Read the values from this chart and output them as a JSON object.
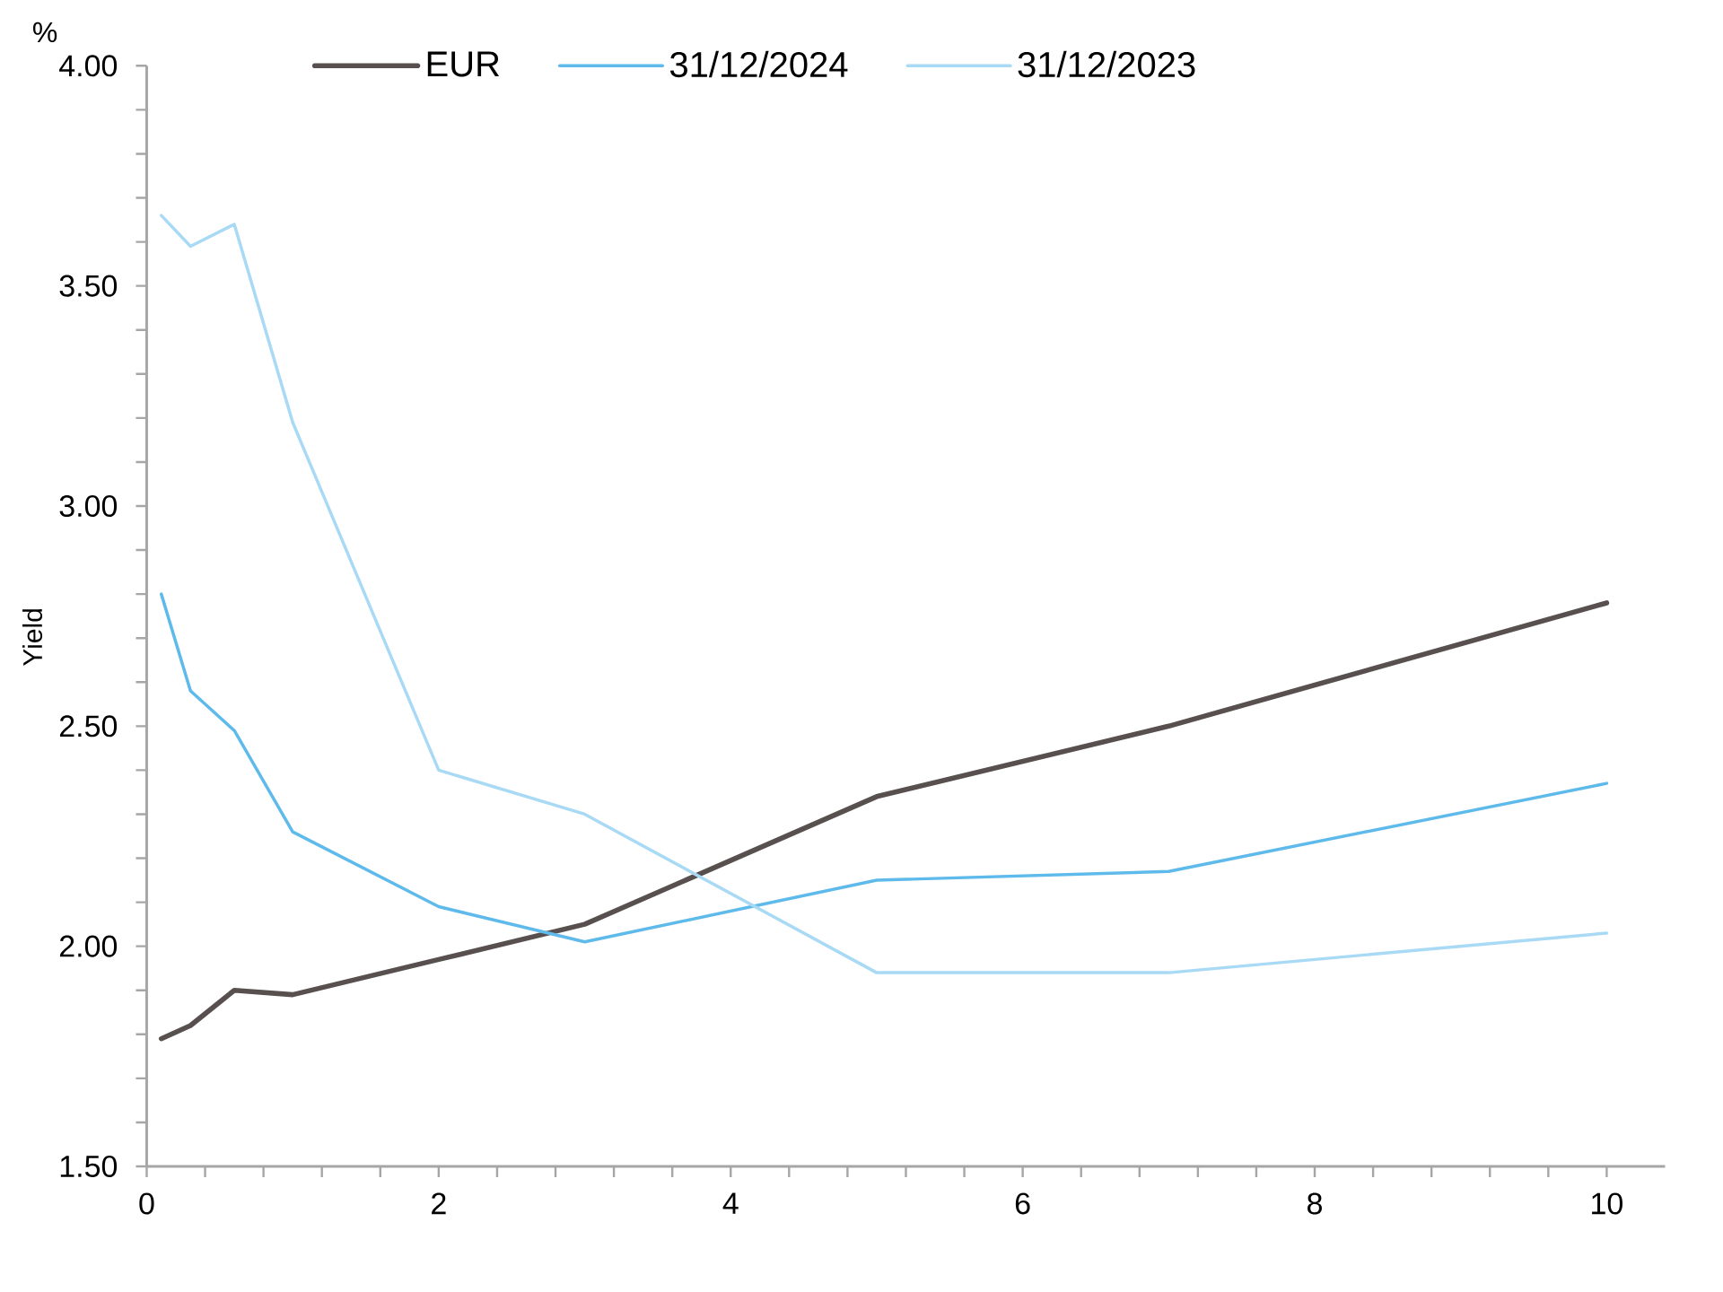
{
  "chart_data": {
    "type": "line",
    "ylabel": "Yield",
    "annotations": [
      "%"
    ],
    "x": [
      0.1,
      0.3,
      0.6,
      1,
      2,
      3,
      5,
      7,
      10
    ],
    "series": [
      {
        "name": "EUR",
        "color": "#57504f",
        "values": [
          1.79,
          1.82,
          1.9,
          1.89,
          1.97,
          2.05,
          2.34,
          2.5,
          2.78
        ]
      },
      {
        "name": "31/12/2024",
        "color": "#5fbaec",
        "values": [
          2.8,
          2.58,
          2.49,
          2.26,
          2.09,
          2.01,
          2.15,
          2.17,
          2.37
        ]
      },
      {
        "name": "31/12/2023",
        "color": "#a8d9f5",
        "values": [
          3.66,
          3.59,
          3.64,
          3.19,
          2.4,
          2.3,
          1.94,
          1.94,
          2.03
        ]
      }
    ],
    "xlim": [
      0,
      10.4
    ],
    "ylim": [
      1.5,
      4.0
    ],
    "xticks": [
      0,
      {
        "value": 0.4,
        "label": null
      },
      {
        "value": 0.8,
        "label": null
      },
      {
        "value": 1.2,
        "label": null
      },
      {
        "value": 1.6,
        "label": null
      },
      2,
      {
        "value": 2.4,
        "label": null
      },
      {
        "value": 2.8,
        "label": null
      },
      {
        "value": 3.2,
        "label": null
      },
      {
        "value": 3.6,
        "label": null
      },
      4,
      {
        "value": 4.4,
        "label": null
      },
      {
        "value": 4.8,
        "label": null
      },
      {
        "value": 5.2,
        "label": null
      },
      {
        "value": 5.6,
        "label": null
      },
      6,
      {
        "value": 6.4,
        "label": null
      },
      {
        "value": 6.8,
        "label": null
      },
      {
        "value": 7.2,
        "label": null
      },
      {
        "value": 7.6,
        "label": null
      },
      8,
      {
        "value": 8.4,
        "label": null
      },
      {
        "value": 8.8,
        "label": null
      },
      {
        "value": 9.2,
        "label": null
      },
      {
        "value": 9.6,
        "label": null
      },
      10
    ],
    "yticks": [
      {
        "value": 1.5,
        "label": "1.50"
      },
      {
        "value": 1.6,
        "label": null
      },
      {
        "value": 1.7,
        "label": null
      },
      {
        "value": 1.8,
        "label": null
      },
      {
        "value": 1.9,
        "label": null
      },
      {
        "value": 2.0,
        "label": "2.00"
      },
      {
        "value": 2.1,
        "label": null
      },
      {
        "value": 2.2,
        "label": null
      },
      {
        "value": 2.3,
        "label": null
      },
      {
        "value": 2.4,
        "label": null
      },
      {
        "value": 2.5,
        "label": "2.50"
      },
      {
        "value": 2.6,
        "label": null
      },
      {
        "value": 2.7,
        "label": null
      },
      {
        "value": 2.8,
        "label": null
      },
      {
        "value": 2.9,
        "label": null
      },
      {
        "value": 3.0,
        "label": "3.00"
      },
      {
        "value": 3.1,
        "label": null
      },
      {
        "value": 3.2,
        "label": null
      },
      {
        "value": 3.3,
        "label": null
      },
      {
        "value": 3.4,
        "label": null
      },
      {
        "value": 3.5,
        "label": "3.50"
      },
      {
        "value": 3.6,
        "label": null
      },
      {
        "value": 3.7,
        "label": null
      },
      {
        "value": 3.8,
        "label": null
      },
      {
        "value": 3.9,
        "label": null
      },
      {
        "value": 4.0,
        "label": "4.00"
      }
    ],
    "legend": "top",
    "marker": "none",
    "line_style": "solid"
  }
}
